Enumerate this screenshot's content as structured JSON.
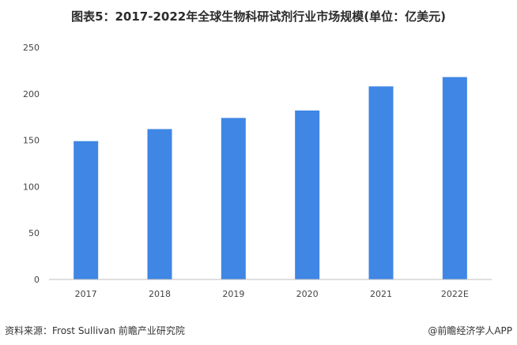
{
  "title": "图表5：2017-2022年全球生物科研试剂行业市场规模(单位：亿美元)",
  "chart_data": {
    "type": "bar",
    "categories": [
      "2017",
      "2018",
      "2019",
      "2020",
      "2021",
      "2022E"
    ],
    "values": [
      149,
      162,
      174,
      182,
      208,
      218
    ],
    "ylim": [
      0,
      250
    ],
    "yticks": [
      0,
      50,
      100,
      150,
      200,
      250
    ],
    "xlabel": "",
    "ylabel": "",
    "grid": false,
    "bar_color": "#3f86e5"
  },
  "footer": {
    "source": "资料来源：Frost Sullivan 前瞻产业研究院",
    "brand": "@前瞻经济学人APP"
  }
}
